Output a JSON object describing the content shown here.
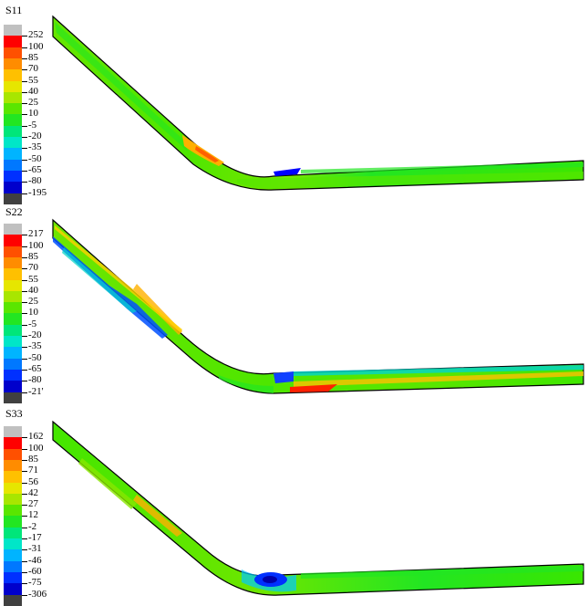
{
  "legend_colors": [
    "#c0c0c0",
    "#ff0000",
    "#ff5000",
    "#ff8c00",
    "#ffc000",
    "#e6e600",
    "#a8e600",
    "#5ae600",
    "#22e622",
    "#00e67a",
    "#00e6c8",
    "#00b4ff",
    "#0078ff",
    "#0030ff",
    "#0000cc",
    "#404040"
  ],
  "panels": [
    {
      "id": "s11",
      "title": "S11",
      "labels": [
        "252",
        "100",
        "85",
        "70",
        "55",
        "40",
        "25",
        "10",
        "-5",
        "-20",
        "-35",
        "-50",
        "-65",
        "-80",
        "-195"
      ]
    },
    {
      "id": "s22",
      "title": "S22",
      "labels": [
        "217",
        "100",
        "85",
        "70",
        "55",
        "40",
        "25",
        "10",
        "-5",
        "-20",
        "-35",
        "-50",
        "-65",
        "-80",
        "-21'"
      ]
    },
    {
      "id": "s33",
      "title": "S33",
      "labels": [
        "162",
        "100",
        "85",
        "71",
        "56",
        "42",
        "27",
        "12",
        "-2",
        "-17",
        "-31",
        "-46",
        "-60",
        "-75",
        "-306"
      ]
    }
  ]
}
